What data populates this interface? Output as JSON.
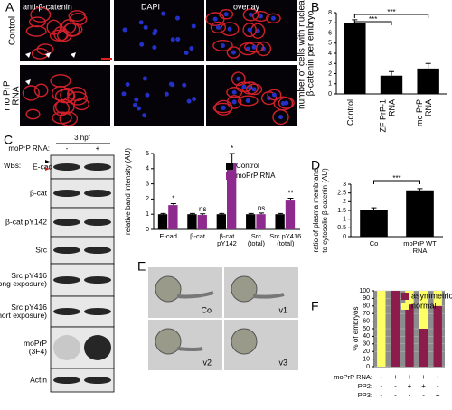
{
  "panel_labels": [
    "A",
    "B",
    "C",
    "D",
    "E",
    "F"
  ],
  "panel_a": {
    "columns": [
      "anti-β-catenin",
      "DAPI",
      "overlay"
    ],
    "rows": [
      "Control",
      [
        "mo PrP",
        "RNA"
      ]
    ]
  },
  "panel_c_blot": {
    "header": "3 hpf",
    "treatment": "moPrP RNA:",
    "lanes": [
      "-",
      "+"
    ],
    "prefix": "WBs:",
    "rows": [
      [
        "E-cad"
      ],
      [
        "β-cat"
      ],
      [
        "β-cat pY142"
      ],
      [
        "Src"
      ],
      [
        "Src pY416",
        "(long exposure)"
      ],
      [
        "Src pY416",
        "(short exposure)"
      ],
      [
        "moPrP",
        "(3F4)"
      ],
      [
        "Actin"
      ]
    ]
  },
  "panel_e": {
    "labels": [
      "Co",
      "v1",
      "v2",
      "v3"
    ]
  },
  "chart_data": [
    {
      "type": "bar",
      "ylabel": [
        "number of cells with nuclear",
        "β-catenin per embryo"
      ],
      "categories": [
        [
          "Control"
        ],
        [
          "ZF PrP-1",
          "RNA"
        ],
        [
          "mo PrP",
          "RNA"
        ]
      ],
      "values": [
        7.0,
        1.8,
        2.5
      ],
      "errors": [
        0.3,
        0.4,
        0.5
      ],
      "color": "#000000",
      "ylim": [
        0,
        8
      ],
      "yticks": [
        0,
        1,
        2,
        3,
        4,
        5,
        6,
        7,
        8
      ],
      "annotations": [
        "***",
        "***"
      ]
    },
    {
      "type": "grouped_bar",
      "ylabel": [
        "relative band intensity (AU)"
      ],
      "categories": [
        [
          "E-cad"
        ],
        [
          "β-cat"
        ],
        [
          "β-cat",
          "pY142"
        ],
        [
          "Src",
          "(total)"
        ],
        [
          "Src pY416",
          "(total)"
        ]
      ],
      "series": [
        {
          "name": "Control",
          "color": "#000000",
          "values": [
            1,
            1,
            1,
            1,
            1
          ],
          "errors": [
            0.05,
            0.05,
            0.05,
            0.05,
            0.05
          ]
        },
        {
          "name": "moPrP RNA",
          "color": "#8e2a8e",
          "values": [
            1.6,
            0.95,
            4.4,
            1.0,
            1.9
          ],
          "errors": [
            0.1,
            0.08,
            0.6,
            0.08,
            0.15
          ]
        }
      ],
      "ylim": [
        0,
        5
      ],
      "yticks": [
        0,
        1,
        2,
        3,
        4,
        5
      ],
      "annotations": [
        "*",
        "ns",
        "*",
        "ns",
        "**"
      ]
    },
    {
      "type": "bar",
      "ylabel": [
        "ratio of plasma membrane",
        "to cytosolic β-catenin (AU)"
      ],
      "categories": [
        [
          "Co"
        ],
        [
          "moPrP WT",
          "RNA"
        ]
      ],
      "values": [
        1.5,
        2.65
      ],
      "errors": [
        0.15,
        0.1
      ],
      "color": "#000000",
      "ylim": [
        0,
        3
      ],
      "yticks": [
        0,
        0.5,
        1,
        1.5,
        2,
        2.5,
        3
      ],
      "annotations": [
        "***"
      ]
    },
    {
      "type": "stacked_bar",
      "ylabel": [
        "% of embryos"
      ],
      "series": [
        {
          "name": "asymmetric",
          "color": "#8b1c4c",
          "values": [
            0,
            100,
            82,
            50,
            80
          ]
        },
        {
          "name": "normal",
          "color": "#ffff66",
          "values": [
            100,
            0,
            18,
            50,
            20
          ]
        }
      ],
      "ylim": [
        0,
        100
      ],
      "yticks": [
        0,
        10,
        20,
        30,
        40,
        50,
        60,
        70,
        80,
        90,
        100
      ],
      "conditions": [
        {
          "name": "moPrP RNA:",
          "values": [
            "-",
            "+",
            "+",
            "+",
            "+"
          ]
        },
        {
          "name": "PP2:",
          "values": [
            "-",
            "-",
            "+",
            "+",
            "-"
          ]
        },
        {
          "name": "PP3:",
          "values": [
            "-",
            "-",
            "-",
            "-",
            "+"
          ]
        }
      ]
    }
  ]
}
